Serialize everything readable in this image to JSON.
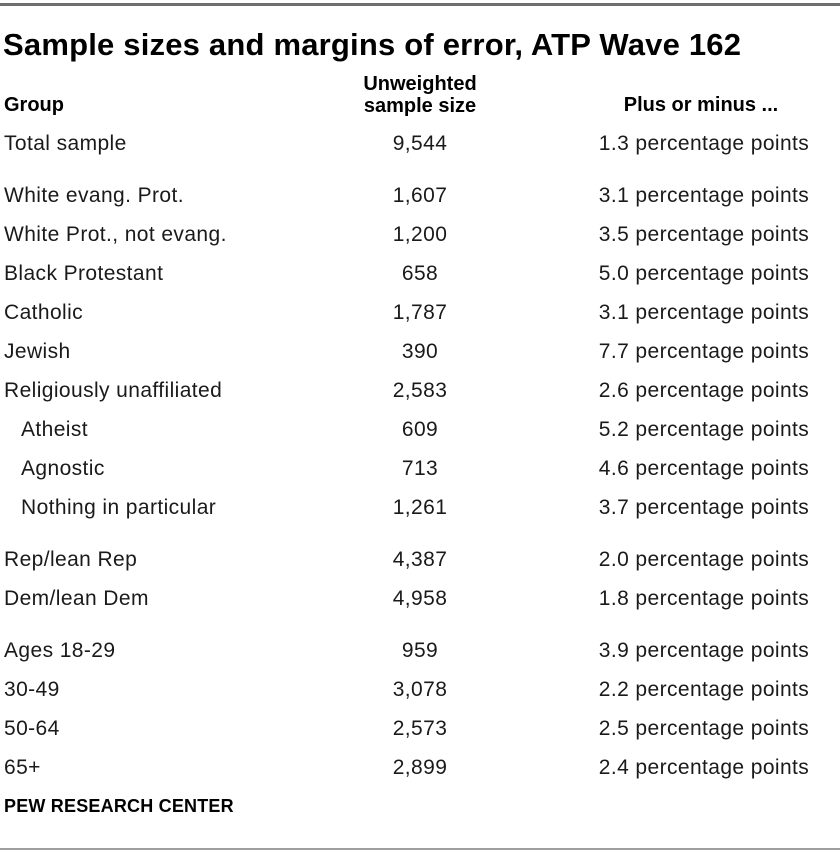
{
  "title": "Sample sizes and margins of error, ATP Wave 162",
  "header": {
    "group": "Group",
    "sample_line1": "Unweighted",
    "sample_line2": "sample size",
    "moe": "Plus or minus ..."
  },
  "footer": "PEW RESEARCH CENTER",
  "colors": {
    "text": "#1a1a1a",
    "rule_top": "#6e6e6e",
    "rule_bottom": "#9e9e9e"
  },
  "chart_data": {
    "type": "table",
    "title": "Sample sizes and margins of error, ATP Wave 162",
    "columns": [
      "Group",
      "Unweighted sample size",
      "Plus or minus ..."
    ],
    "rows": [
      {
        "group": "Total sample",
        "n": "9,544",
        "moe": "1.3 percentage points"
      },
      {
        "group": "White evang. Prot.",
        "n": "1,607",
        "moe": "3.1 percentage points"
      },
      {
        "group": "White Prot., not evang.",
        "n": "1,200",
        "moe": "3.5 percentage points"
      },
      {
        "group": "Black Protestant",
        "n": "658",
        "moe": "5.0 percentage points"
      },
      {
        "group": "Catholic",
        "n": "1,787",
        "moe": "3.1 percentage points"
      },
      {
        "group": "Jewish",
        "n": "390",
        "moe": "7.7 percentage points"
      },
      {
        "group": "Religiously unaffiliated",
        "n": "2,583",
        "moe": "2.6 percentage points"
      },
      {
        "group": "Atheist",
        "n": "609",
        "moe": "5.2 percentage points",
        "indent": true
      },
      {
        "group": "Agnostic",
        "n": "713",
        "moe": "4.6 percentage points",
        "indent": true
      },
      {
        "group": "Nothing in particular",
        "n": "1,261",
        "moe": "3.7 percentage points",
        "indent": true
      },
      {
        "group": "Rep/lean Rep",
        "n": "4,387",
        "moe": "2.0 percentage points"
      },
      {
        "group": "Dem/lean Dem",
        "n": "4,958",
        "moe": "1.8 percentage points"
      },
      {
        "group": "Ages 18-29",
        "n": "959",
        "moe": "3.9 percentage points"
      },
      {
        "group": "30-49",
        "n": "3,078",
        "moe": "2.2 percentage points"
      },
      {
        "group": "50-64",
        "n": "2,573",
        "moe": "2.5 percentage points"
      },
      {
        "group": "65+",
        "n": "2,899",
        "moe": "2.4 percentage points"
      }
    ]
  }
}
